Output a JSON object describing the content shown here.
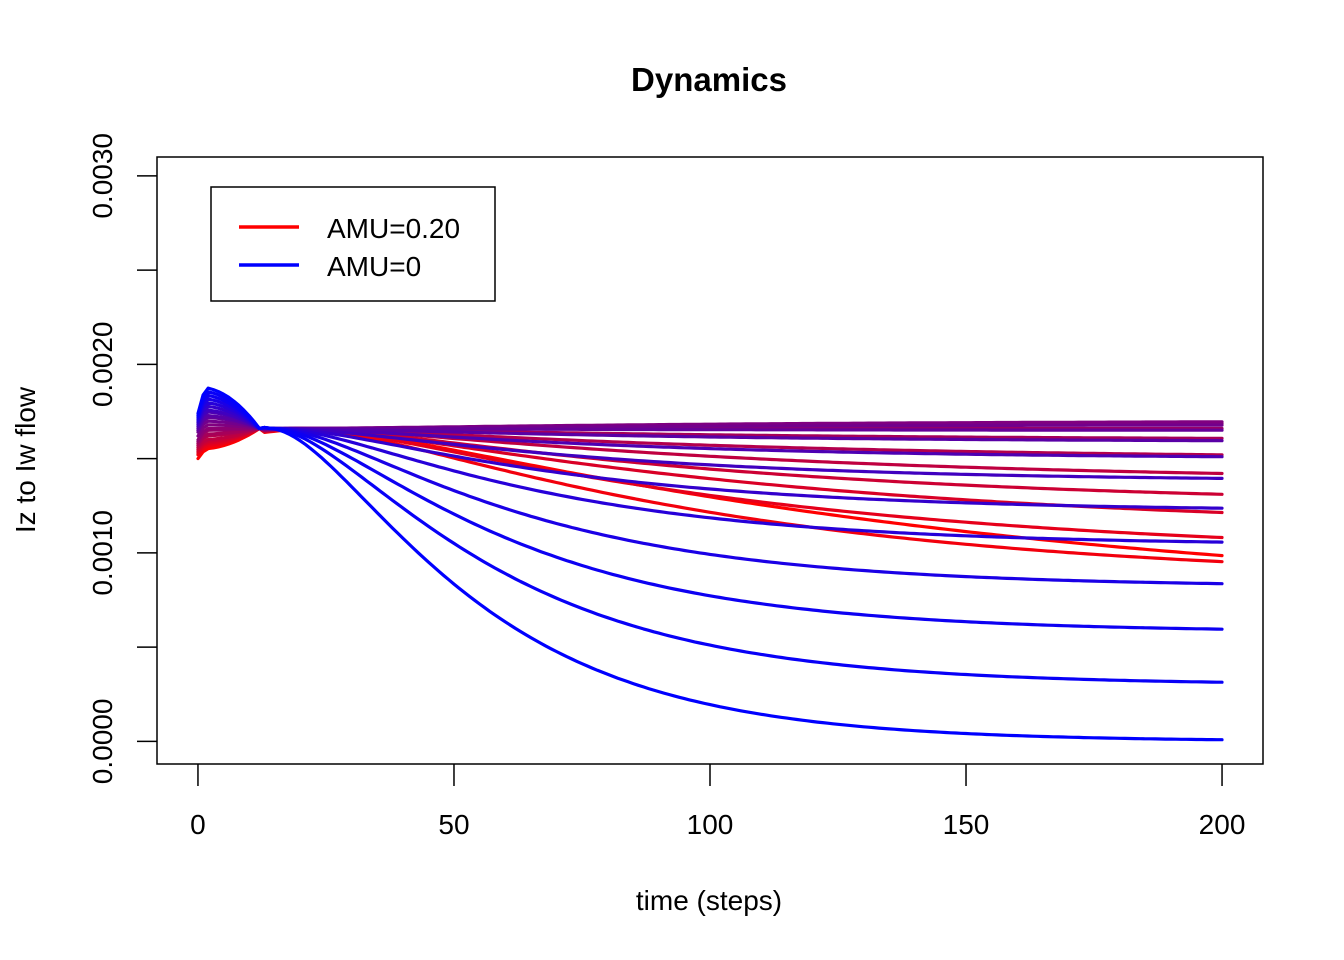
{
  "chart_data": {
    "type": "line",
    "title": "Dynamics",
    "xlabel": "time (steps)",
    "ylabel": "Iz to Iw flow",
    "xlim": [
      -8,
      208
    ],
    "ylim": [
      -0.00012,
      0.0031
    ],
    "x_ticks": [
      0,
      50,
      100,
      150,
      200
    ],
    "x_tick_labels": [
      "0",
      "50",
      "100",
      "150",
      "200"
    ],
    "y_ticks": [
      0.0,
      0.0005,
      0.001,
      0.0015,
      0.002,
      0.0025,
      0.003
    ],
    "y_tick_labels": [
      "0.0000",
      "",
      "0.0010",
      "",
      "0.0020",
      "",
      "0.0030"
    ],
    "grid": false,
    "legend": {
      "placement": "top-left",
      "entries": [
        {
          "label": "AMU=0.20",
          "color": "#ff0000"
        },
        {
          "label": "AMU=0",
          "color": "#0000ff"
        }
      ]
    },
    "series_family": [
      {
        "end": 0.00072,
        "start": 0.0015,
        "peak": 0.00155,
        "decay": 0.008,
        "color": "#ff0000"
      },
      {
        "end": 0.00085,
        "start": 0.00152,
        "peak": 0.00156,
        "decay": 0.013,
        "color": "#f2000d"
      },
      {
        "end": 0.00098,
        "start": 0.00153,
        "peak": 0.00157,
        "decay": 0.012,
        "color": "#e6001a"
      },
      {
        "end": 0.00112,
        "start": 0.00154,
        "peak": 0.00158,
        "decay": 0.011,
        "color": "#d90026"
      },
      {
        "end": 0.00125,
        "start": 0.00155,
        "peak": 0.00159,
        "decay": 0.012,
        "color": "#cc0033"
      },
      {
        "end": 0.00138,
        "start": 0.00156,
        "peak": 0.0016,
        "decay": 0.012,
        "color": "#bf0040"
      },
      {
        "end": 0.0015,
        "start": 0.00157,
        "peak": 0.00162,
        "decay": 0.013,
        "color": "#b3004d"
      },
      {
        "end": 0.0016,
        "start": 0.00158,
        "peak": 0.00163,
        "decay": 0.013,
        "color": "#a60059"
      },
      {
        "end": 0.00166,
        "start": 0.00159,
        "peak": 0.00165,
        "decay": 0.013,
        "color": "#990066"
      },
      {
        "end": 0.00169,
        "start": 0.0016,
        "peak": 0.00166,
        "decay": 0.013,
        "color": "#8c0073"
      },
      {
        "end": 0.0017,
        "start": 0.00162,
        "peak": 0.00168,
        "decay": 0.013,
        "color": "#800080"
      },
      {
        "end": 0.00168,
        "start": 0.00164,
        "peak": 0.0017,
        "decay": 0.014,
        "color": "#73008c"
      },
      {
        "end": 0.00165,
        "start": 0.00165,
        "peak": 0.00172,
        "decay": 0.016,
        "color": "#660099"
      },
      {
        "end": 0.00159,
        "start": 0.00166,
        "peak": 0.00173,
        "decay": 0.016,
        "color": "#5900a6"
      },
      {
        "end": 0.0015,
        "start": 0.00167,
        "peak": 0.00175,
        "decay": 0.017,
        "color": "#4d00b3"
      },
      {
        "end": 0.00138,
        "start": 0.00168,
        "peak": 0.00176,
        "decay": 0.018,
        "color": "#4000bf"
      },
      {
        "end": 0.00122,
        "start": 0.00169,
        "peak": 0.00178,
        "decay": 0.02,
        "color": "#3300cc"
      },
      {
        "end": 0.00104,
        "start": 0.0017,
        "peak": 0.0018,
        "decay": 0.022,
        "color": "#2600d9"
      },
      {
        "end": 0.00082,
        "start": 0.00171,
        "peak": 0.00182,
        "decay": 0.024,
        "color": "#1a00e6"
      },
      {
        "end": 0.00058,
        "start": 0.00172,
        "peak": 0.00184,
        "decay": 0.026,
        "color": "#0d00f2"
      },
      {
        "end": 0.0003,
        "start": 0.00173,
        "peak": 0.00186,
        "decay": 0.028,
        "color": "#0800f7"
      },
      {
        "end": 0.0,
        "start": 0.00174,
        "peak": 0.00188,
        "decay": 0.032,
        "color": "#0000ff"
      }
    ]
  }
}
